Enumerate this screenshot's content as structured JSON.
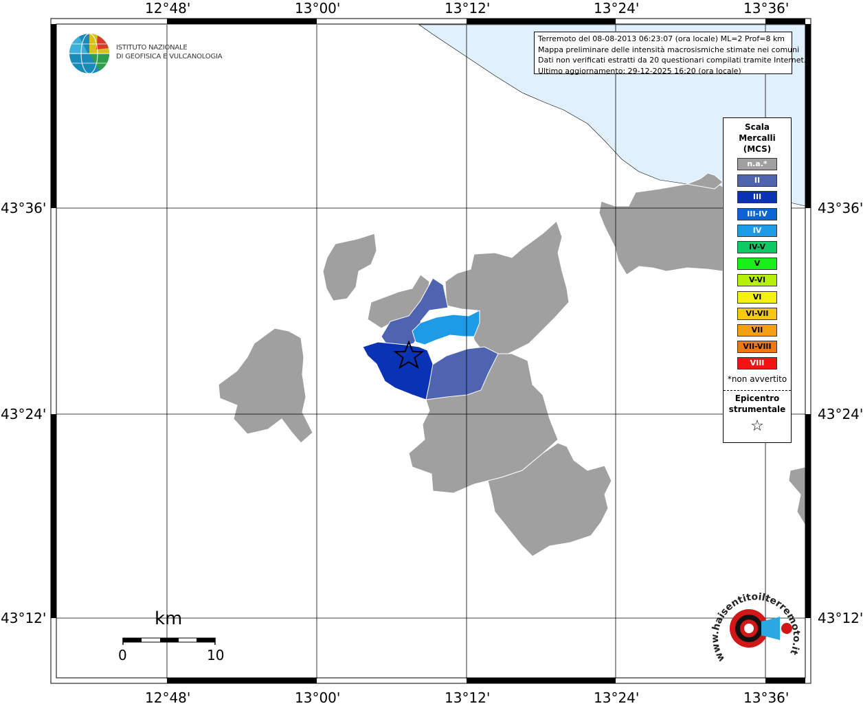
{
  "map": {
    "longitude_labels": [
      "12°48'",
      "13°00'",
      "13°12'",
      "13°24'",
      "13°36'"
    ],
    "latitude_labels": [
      "43°36'",
      "43°24'",
      "43°12'"
    ]
  },
  "logo": {
    "line1": "ISTITUTO NAZIONALE",
    "line2": "DI GEOFISICA E VULCANOLOGIA"
  },
  "info": {
    "line1": "Terremoto del 08-08-2013 06:23:07 (ora locale) ML=2 Prof=8 km",
    "line2": "Mappa preliminare delle intensità macrosismiche stimate nei comuni",
    "line3": "Dati non verificati estratti da 20 questionari compilati tramite Internet.",
    "line4": "Ultimo aggiornamento: 29-12-2025 16:20 (ora locale)"
  },
  "legend": {
    "title1": "Scala",
    "title2": "Mercalli",
    "title3": "(MCS)",
    "items": [
      {
        "label": "n.a.*",
        "color": "#a0a0a0",
        "text_color": "#ffffff"
      },
      {
        "label": "II",
        "color": "#4f64b0",
        "text_color": "#ffffff"
      },
      {
        "label": "III",
        "color": "#0a32b4",
        "text_color": "#ffffff"
      },
      {
        "label": "III-IV",
        "color": "#0a64d2",
        "text_color": "#ffffff"
      },
      {
        "label": "IV",
        "color": "#1e9be6",
        "text_color": "#ffffff"
      },
      {
        "label": "IV-V",
        "color": "#10c864",
        "text_color": "#000000"
      },
      {
        "label": "V",
        "color": "#19f019",
        "text_color": "#000000"
      },
      {
        "label": "V-VI",
        "color": "#b4f00a",
        "text_color": "#000000"
      },
      {
        "label": "VI",
        "color": "#f5f014",
        "text_color": "#000000"
      },
      {
        "label": "VI-VII",
        "color": "#f5c814",
        "text_color": "#000000"
      },
      {
        "label": "VII",
        "color": "#f5a014",
        "text_color": "#000000"
      },
      {
        "label": "VII-VIII",
        "color": "#f07814",
        "text_color": "#000000"
      },
      {
        "label": "VIII",
        "color": "#f01414",
        "text_color": "#ffffff"
      }
    ],
    "note": "*non avvertito",
    "epicenter_line1": "Epicentro",
    "epicenter_line2": "strumentale",
    "star": "☆"
  },
  "scale_bar": {
    "unit": "km",
    "start": "0",
    "end": "10"
  },
  "hsit_logo": {
    "text": "www.haisentitoilterremoto.it"
  },
  "colors": {
    "sea": "#e0f0fc",
    "not_felt": "#a0a0a0",
    "intensity_II": "#4f64b0",
    "intensity_III": "#0a32b4",
    "intensity_IV": "#1e9be6"
  }
}
